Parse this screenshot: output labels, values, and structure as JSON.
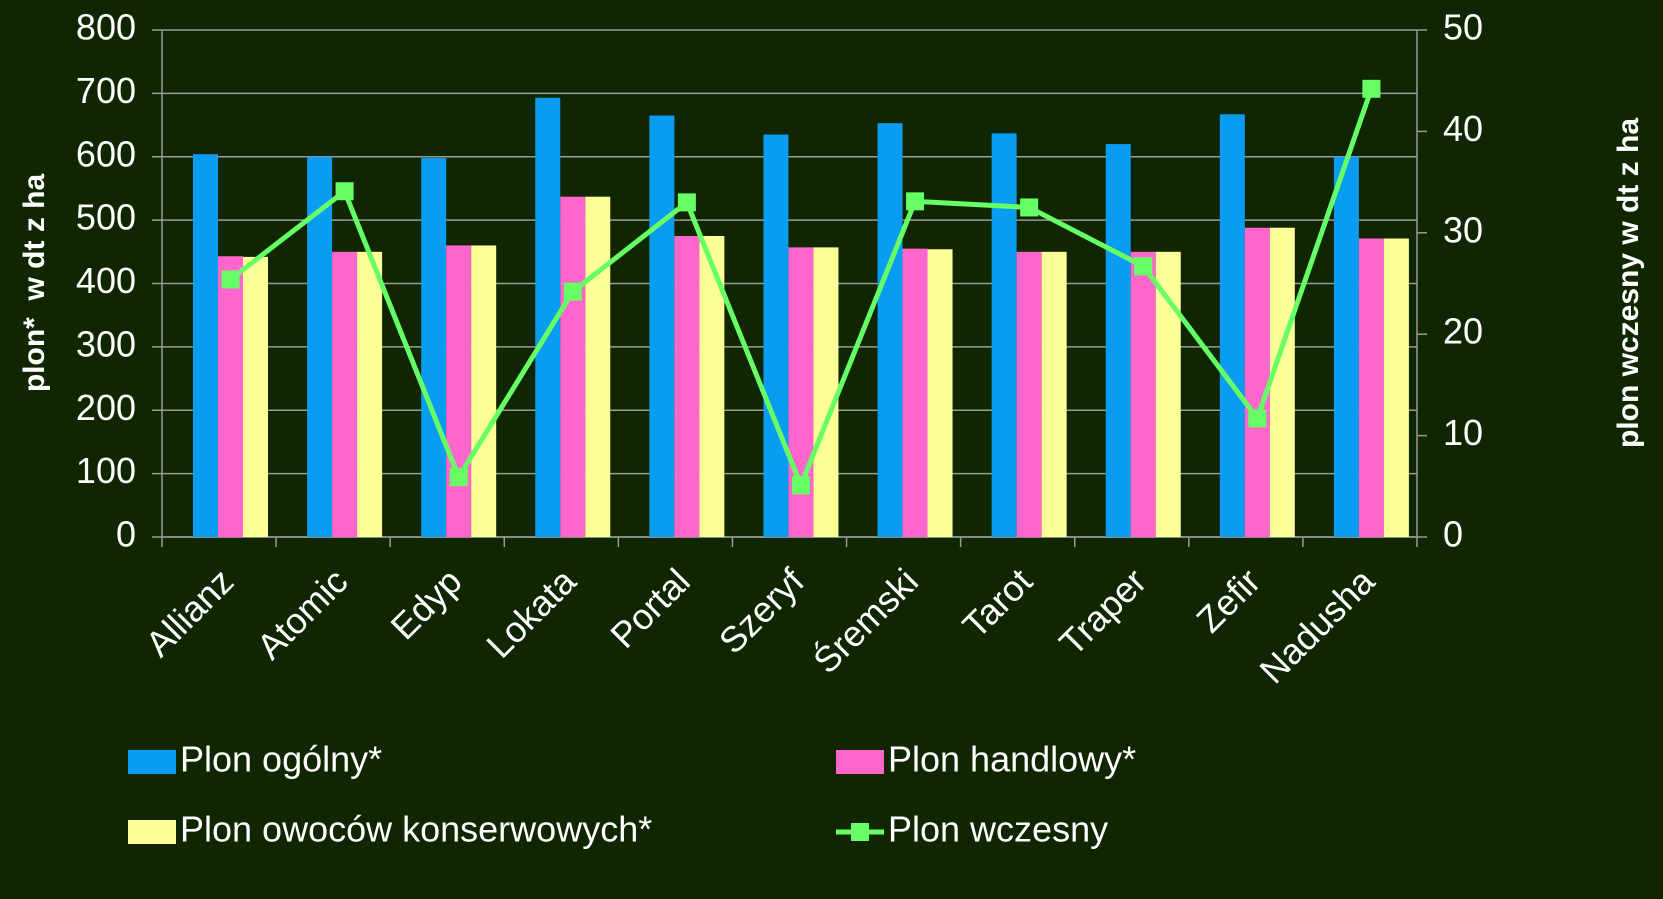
{
  "chart_data": {
    "type": "bar_line",
    "y_label": "plon*  w dt z ha",
    "y2_label": "plon wczesny w dt z ha",
    "categories": [
      "Allianz",
      "Atomic",
      "Edyp",
      "Lokata",
      "Portal",
      "Szeryf",
      "Śremski",
      "Tarot",
      "Traper",
      "Zefir",
      "Nadusha"
    ],
    "series": [
      {
        "name": "Plon ogólny*",
        "type": "bar",
        "color": "#0a9cf0",
        "values": [
          604,
          600,
          598,
          693,
          665,
          635,
          653,
          637,
          620,
          667,
          600
        ]
      },
      {
        "name": "Plon handlowy*",
        "type": "bar",
        "color": "#ff66cc",
        "values": [
          443,
          450,
          460,
          537,
          475,
          457,
          455,
          450,
          450,
          488,
          471
        ]
      },
      {
        "name": "Plon owoców konserwowych*",
        "type": "bar",
        "color": "#ffff99",
        "values": [
          442,
          450,
          460,
          537,
          475,
          457,
          454,
          450,
          450,
          488,
          471
        ]
      },
      {
        "name": "Plon wczesny",
        "type": "line",
        "axis": "y2",
        "color": "#66ff66",
        "values": [
          25.4,
          34.1,
          5.9,
          24.2,
          33.0,
          5.1,
          33.1,
          32.5,
          26.7,
          11.7,
          44.2
        ]
      }
    ],
    "ylim": [
      0,
      800
    ],
    "yticks": [
      0,
      100,
      200,
      300,
      400,
      500,
      600,
      700,
      800
    ],
    "y2lim": [
      0,
      50
    ],
    "y2ticks": [
      0,
      10,
      20,
      30,
      40,
      50
    ],
    "grid": true
  }
}
